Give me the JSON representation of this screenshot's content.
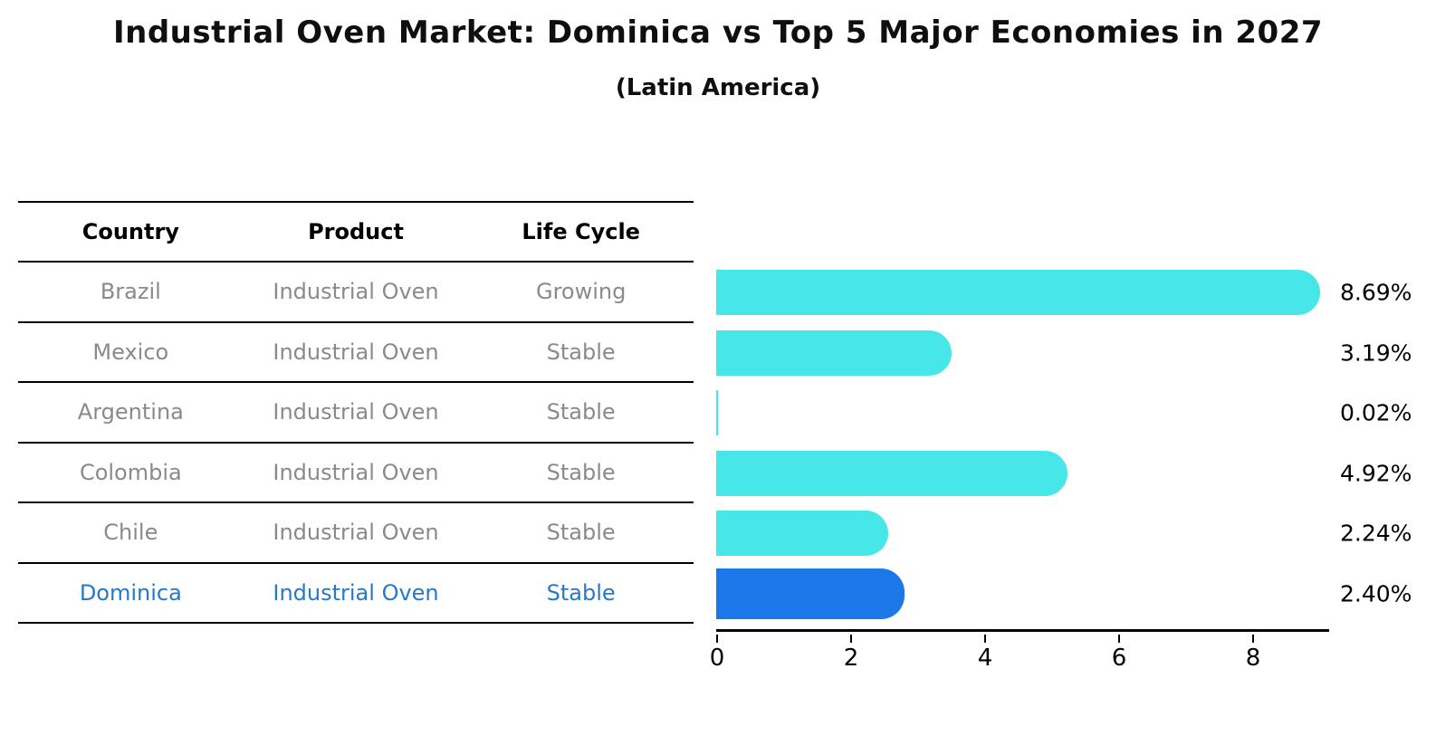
{
  "title": "Industrial Oven Market: Dominica vs Top 5 Major Economies in 2027",
  "subtitle": "(Latin America)",
  "table": {
    "headers": [
      "Country",
      "Product",
      "Life Cycle"
    ],
    "rows": [
      {
        "country": "Brazil",
        "product": "Industrial Oven",
        "life_cycle": "Growing",
        "highlighted": false
      },
      {
        "country": "Mexico",
        "product": "Industrial Oven",
        "life_cycle": "Stable",
        "highlighted": false
      },
      {
        "country": "Argentina",
        "product": "Industrial Oven",
        "life_cycle": "Stable",
        "highlighted": false
      },
      {
        "country": "Colombia",
        "product": "Industrial Oven",
        "life_cycle": "Stable",
        "highlighted": false
      },
      {
        "country": "Chile",
        "product": "Industrial Oven",
        "life_cycle": "Stable",
        "highlighted": false
      },
      {
        "country": "Dominica",
        "product": "Industrial Oven",
        "life_cycle": "Stable",
        "highlighted": true
      }
    ]
  },
  "chart_data": {
    "type": "bar",
    "orientation": "horizontal",
    "categories": [
      "Brazil",
      "Mexico",
      "Argentina",
      "Colombia",
      "Chile",
      "Dominica"
    ],
    "values": [
      8.69,
      3.19,
      0.02,
      4.92,
      2.24,
      2.4
    ],
    "bar_labels": [
      "8.69%",
      "3.19%",
      "0.02%",
      "4.92%",
      "2.24%",
      "2.40%"
    ],
    "highlighted_category": "Dominica",
    "x_ticks": [
      "0",
      "2",
      "4",
      "6",
      "8"
    ],
    "x_tick_values": [
      0,
      2,
      4,
      6,
      8
    ],
    "xlim": [
      0,
      9.15
    ],
    "grid": "off",
    "legend": "none",
    "colors": {
      "bar_default": "#47E6E8",
      "bar_highlight": "#1C78E8",
      "highlight_text": "#2878C8",
      "table_text": "#8a8a8a",
      "header_text": "#000000"
    }
  }
}
